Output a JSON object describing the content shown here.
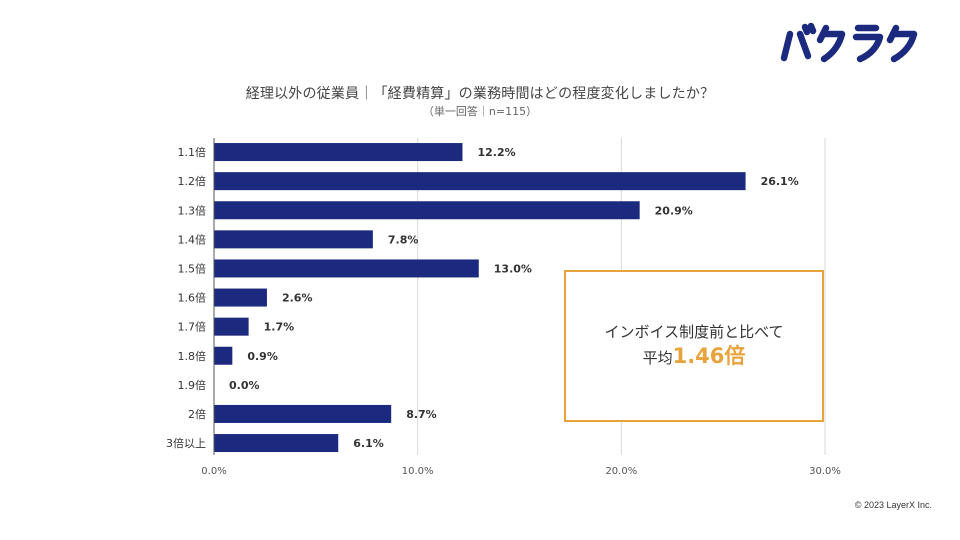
{
  "logo": {
    "text": "バクラク"
  },
  "chart_data": {
    "type": "bar",
    "orientation": "horizontal",
    "title": "経理以外の従業員｜「経費精算」の業務時間はどの程度変化しましたか？",
    "subtitle": "（単一回答｜n=115）",
    "categories": [
      "1.1倍",
      "1.2倍",
      "1.3倍",
      "1.4倍",
      "1.5倍",
      "1.6倍",
      "1.7倍",
      "1.8倍",
      "1.9倍",
      "2倍",
      "3倍以上"
    ],
    "values": [
      12.2,
      26.1,
      20.9,
      7.8,
      13.0,
      2.6,
      1.7,
      0.9,
      0.0,
      8.7,
      6.1
    ],
    "value_labels": [
      "12.2%",
      "26.1%",
      "20.9%",
      "7.8%",
      "13.0%",
      "2.6%",
      "1.7%",
      "0.9%",
      "0.0%",
      "8.7%",
      "6.1%"
    ],
    "xlim": [
      0,
      30
    ],
    "xticks": [
      0,
      10,
      20,
      30
    ],
    "xtick_labels": [
      "0.0%",
      "10.0%",
      "20.0%",
      "30.0%"
    ],
    "grid": true,
    "bar_color": "#1B2A7E"
  },
  "callout": {
    "line1": "インボイス制度前と比べて",
    "prefix": "平均",
    "highlight": "1.46倍",
    "border_color": "#E8A33B"
  },
  "copyright": "© 2023 LayerX Inc."
}
